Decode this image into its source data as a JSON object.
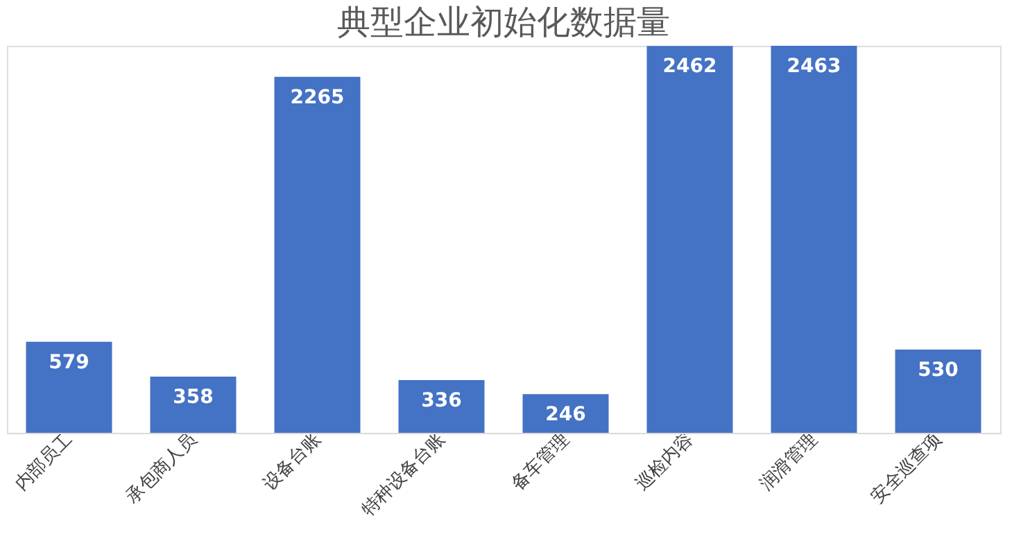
{
  "chart_data": {
    "type": "bar",
    "title": "典型企业初始化数据量",
    "categories": [
      "内部员工",
      "承包商人员",
      "设备台账",
      "特种设备台账",
      "备车管理",
      "巡检内容",
      "润滑管理",
      "安全巡查项"
    ],
    "values": [
      579,
      358,
      2265,
      336,
      246,
      2462,
      2463,
      530
    ],
    "color": "#4472c4",
    "data_labels": true,
    "grid": false,
    "tick_labels": "x"
  }
}
